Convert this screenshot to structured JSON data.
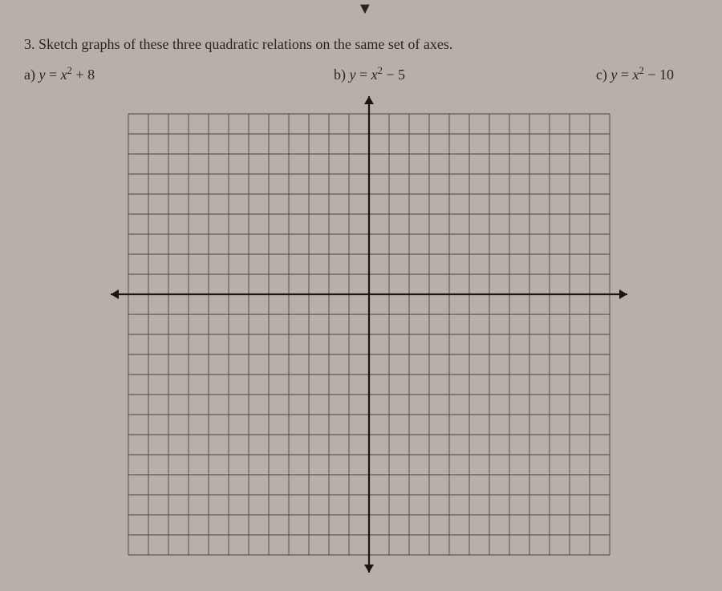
{
  "question": {
    "number": "3.",
    "prompt": "Sketch graphs of these three quadratic relations on the same set of axes."
  },
  "parts": {
    "a": {
      "label": "a)",
      "eq_lhs": "y",
      "eq_rhs_base": "x",
      "eq_rhs_exp": "2",
      "eq_rhs_tail": " + 8"
    },
    "b": {
      "label": "b)",
      "eq_lhs": "y",
      "eq_rhs_base": "x",
      "eq_rhs_exp": "2",
      "eq_rhs_tail": " − 5"
    },
    "c": {
      "label": "c)",
      "eq_lhs": "y",
      "eq_rhs_base": "x",
      "eq_rhs_exp": "2",
      "eq_rhs_tail": " − 10"
    }
  },
  "grid": {
    "cols": 24,
    "rows": 22,
    "cell_size": 25,
    "origin_col": 12,
    "origin_row": 9,
    "line_color": "#4a4440",
    "axis_color": "#1a1512",
    "background": "#b8b0a8",
    "axis_line_width": 2.2,
    "grid_line_width": 0.9,
    "arrow_size": 10
  }
}
